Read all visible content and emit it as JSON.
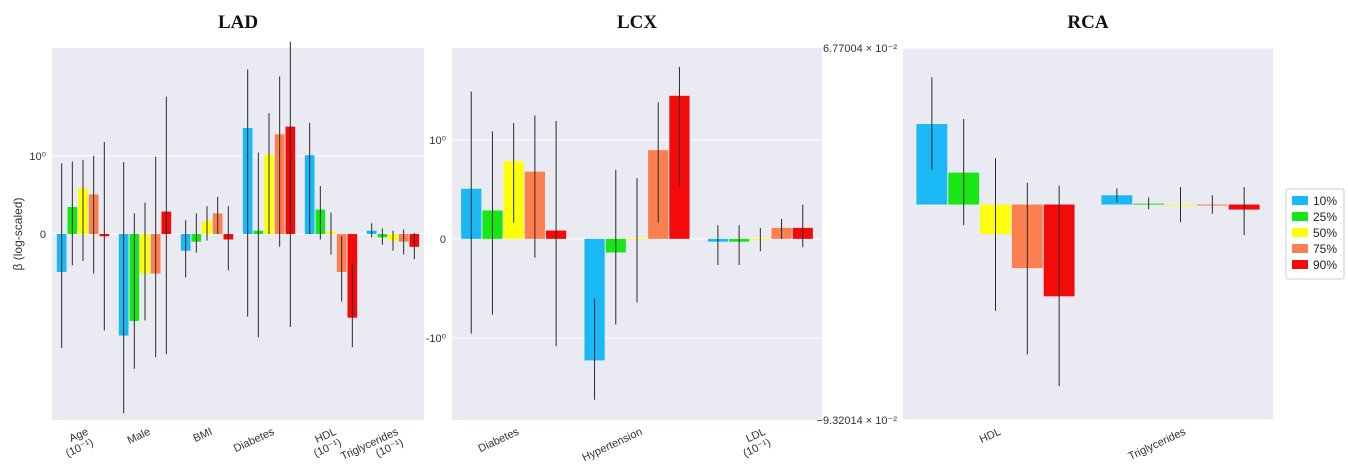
{
  "ylabel": "β (log-scaled)",
  "legend": [
    {
      "label": "10%",
      "color": "#1ab8f5"
    },
    {
      "label": "25%",
      "color": "#17e617"
    },
    {
      "label": "50%",
      "color": "#ffff0a"
    },
    {
      "label": "75%",
      "color": "#fb7f4f"
    },
    {
      "label": "90%",
      "color": "#f50a0a"
    }
  ],
  "chart_data": [
    {
      "type": "bar",
      "title": "LAD",
      "yscale": "symlog",
      "ylim": [
        -4.2,
        4.2
      ],
      "yticks": [
        {
          "value": 1,
          "label": "10⁰"
        },
        {
          "value": 0,
          "label": "0"
        }
      ],
      "categories": [
        {
          "lines": [
            "Age",
            "(10⁻¹)"
          ]
        },
        {
          "lines": [
            "Male"
          ]
        },
        {
          "lines": [
            "BMI"
          ]
        },
        {
          "lines": [
            "Diabetes"
          ]
        },
        {
          "lines": [
            "HDL",
            "(10⁻¹)"
          ]
        },
        {
          "lines": [
            "Triglycerides",
            "(10⁻¹)"
          ]
        }
      ],
      "series": [
        {
          "name": "10%",
          "values": [
            -0.4,
            -1.46,
            -0.16,
            1.56,
            1.01,
            0.03
          ],
          "ci": [
            [
              -1.75,
              0.87
            ],
            [
              -3.9,
              0.89
            ],
            [
              -0.47,
              0.13
            ],
            [
              -1.08,
              3.3
            ],
            [
              0.0,
              1.68
            ],
            [
              -0.03,
              0.1
            ]
          ]
        },
        {
          "name": "25%",
          "values": [
            0.27,
            -1.16,
            -0.07,
            0.03,
            0.24,
            -0.03
          ],
          "ci": [
            [
              -0.32,
              0.9
            ],
            [
              -2.3,
              0.2
            ],
            [
              -0.18,
              0.2
            ],
            [
              -1.5,
              1.06
            ],
            [
              -0.05,
              0.53
            ],
            [
              -0.1,
              0.05
            ]
          ]
        },
        {
          "name": "50%",
          "values": [
            0.5,
            -0.42,
            0.12,
            1.02,
            0.02,
            -0.06
          ],
          "ci": [
            [
              -0.27,
              0.93
            ],
            [
              -1.15,
              0.32
            ],
            [
              -0.06,
              0.28
            ],
            [
              0.0,
              1.92
            ],
            [
              -0.2,
              0.21
            ],
            [
              -0.16,
              0.03
            ]
          ]
        },
        {
          "name": "75%",
          "values": [
            0.42,
            -0.42,
            0.2,
            1.42,
            -0.4,
            -0.07
          ],
          "ci": [
            [
              -0.42,
              1.0
            ],
            [
              -1.98,
              0.98
            ],
            [
              0.0,
              0.39
            ],
            [
              -0.12,
              3.04
            ],
            [
              -0.82,
              -0.02
            ],
            [
              -0.2,
              0.04
            ]
          ]
        },
        {
          "name": "90%",
          "values": [
            -0.02,
            0.22,
            -0.05,
            1.59,
            -1.1,
            -0.12
          ],
          "ci": [
            [
              -1.35,
              1.26
            ],
            [
              -1.9,
              2.37
            ],
            [
              -0.38,
              0.28
            ],
            [
              -1.28,
              4.5
            ],
            [
              -1.73,
              -0.3
            ],
            [
              -0.25,
              0.01
            ]
          ]
        }
      ]
    },
    {
      "type": "bar",
      "title": "LCX",
      "yscale": "symlog",
      "ylim": [
        -2.55,
        2.8
      ],
      "yticks": [
        {
          "value": 1,
          "label": "10⁰"
        },
        {
          "value": 0,
          "label": "0"
        },
        {
          "value": -1,
          "label": "-10⁰"
        }
      ],
      "categories": [
        {
          "lines": [
            "Diabetes"
          ]
        },
        {
          "lines": [
            "Hypertension"
          ]
        },
        {
          "lines": [
            "LDL",
            "(10⁻¹)"
          ]
        }
      ],
      "series": [
        {
          "name": "10%",
          "values": [
            0.42,
            -1.34,
            -0.02
          ],
          "ci": [
            [
              -0.94,
              1.8
            ],
            [
              -0.52,
              -2.08
            ],
            [
              -0.2,
              0.1
            ]
          ]
        },
        {
          "name": "25%",
          "values": [
            0.22,
            -0.1,
            -0.02
          ],
          "ci": [
            [
              -0.7,
              1.12
            ],
            [
              -0.82,
              0.62
            ],
            [
              -0.2,
              0.1
            ]
          ]
        },
        {
          "name": "50%",
          "values": [
            0.72,
            0.0,
            0.0
          ],
          "ci": [
            [
              0.12,
              1.25
            ],
            [
              -0.56,
              0.53
            ],
            [
              -0.09,
              0.08
            ]
          ]
        },
        {
          "name": "75%",
          "values": [
            0.6,
            0.86,
            0.08
          ],
          "ci": [
            [
              -0.14,
              1.37
            ],
            [
              0.12,
              1.6
            ],
            [
              0.0,
              0.15
            ]
          ]
        },
        {
          "name": "90%",
          "values": [
            0.06,
            1.72,
            0.08
          ],
          "ci": [
            [
              -1.12,
              1.28
            ],
            [
              0.45,
              2.33
            ],
            [
              -0.06,
              0.27
            ]
          ]
        }
      ]
    },
    {
      "type": "bar",
      "title": "RCA",
      "yscale": "linear",
      "ylim": [
        -0.0932014,
        0.0677004
      ],
      "yticks": [
        {
          "value": 0.0677004,
          "label": "6.77004 × 10⁻²"
        },
        {
          "value": -0.0932014,
          "label": "−9.32014 × 10⁻²"
        }
      ],
      "categories": [
        {
          "lines": [
            "HDL"
          ]
        },
        {
          "lines": [
            "Triglycerides"
          ]
        }
      ],
      "series": [
        {
          "name": "10%",
          "values": [
            0.0348,
            0.004
          ],
          "ci": [
            [
              0.015,
              0.055
            ],
            [
              0.001,
              0.007
            ]
          ]
        },
        {
          "name": "25%",
          "values": [
            0.0138,
            0.0004
          ],
          "ci": [
            [
              -0.009,
              0.037
            ],
            [
              -0.002,
              0.003
            ]
          ]
        },
        {
          "name": "50%",
          "values": [
            -0.0128,
            0.0
          ],
          "ci": [
            [
              -0.046,
              0.02
            ],
            [
              -0.0076,
              0.0076
            ]
          ]
        },
        {
          "name": "75%",
          "values": [
            -0.0275,
            0.0
          ],
          "ci": [
            [
              -0.0648,
              0.0094
            ],
            [
              -0.004,
              0.004
            ]
          ]
        },
        {
          "name": "90%",
          "values": [
            -0.0397,
            -0.0022
          ],
          "ci": [
            [
              -0.0785,
              0.0082
            ],
            [
              -0.0132,
              0.0076
            ]
          ]
        }
      ]
    }
  ]
}
